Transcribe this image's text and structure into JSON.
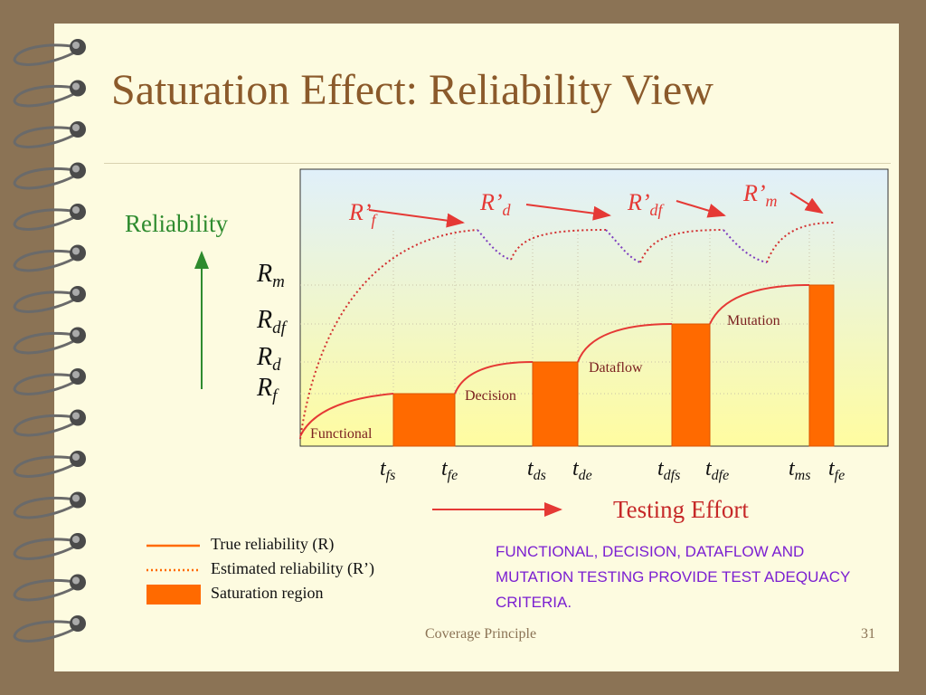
{
  "slide": {
    "title": "Saturation Effect: Reliability View",
    "footer_left": "Coverage Principle",
    "page_number": "31"
  },
  "axes": {
    "y_label": "Reliability",
    "x_label": "Testing Effort"
  },
  "y_levels": [
    {
      "main": "R",
      "sub": "m"
    },
    {
      "main": "R",
      "sub": "df"
    },
    {
      "main": "R",
      "sub": "d"
    },
    {
      "main": "R",
      "sub": "f"
    }
  ],
  "x_ticks": [
    {
      "main": "t",
      "sub": "fs"
    },
    {
      "main": "t",
      "sub": "fe"
    },
    {
      "main": "t",
      "sub": "ds"
    },
    {
      "main": "t",
      "sub": "de"
    },
    {
      "main": "t",
      "sub": "dfs"
    },
    {
      "main": "t",
      "sub": "dfe"
    },
    {
      "main": "t",
      "sub": "ms"
    },
    {
      "main": "t",
      "sub": "fe"
    }
  ],
  "estimate_labels": [
    {
      "main": "R’",
      "sub": "f"
    },
    {
      "main": "R’",
      "sub": "d"
    },
    {
      "main": "R’",
      "sub": "df"
    },
    {
      "main": "R’",
      "sub": "m"
    }
  ],
  "phase_labels": [
    "Functional",
    "Decision",
    "Dataflow",
    "Mutation"
  ],
  "legend": {
    "true_reliability": "True reliability (R)",
    "estimated_reliability": "Estimated reliability (R’)",
    "saturation_region": "Saturation region"
  },
  "note": "FUNCTIONAL, DECISION, DATAFLOW AND MUTATION TESTING PROVIDE TEST ADEQUACY CRITERIA.",
  "colors": {
    "true_curve": "#e53935",
    "estimated_curve": "#d32f2f",
    "estimated_dip": "#7e3fbf",
    "saturation_fill": "#ff6a00",
    "arrow": "#e53935",
    "y_axis_arrow": "#2e8b2e",
    "phase_label": "#7a1f1f"
  }
}
